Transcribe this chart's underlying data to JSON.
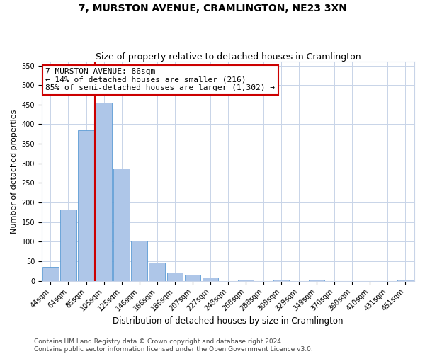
{
  "title": "7, MURSTON AVENUE, CRAMLINGTON, NE23 3XN",
  "subtitle": "Size of property relative to detached houses in Cramlington",
  "xlabel": "Distribution of detached houses by size in Cramlington",
  "ylabel": "Number of detached properties",
  "footer1": "Contains HM Land Registry data © Crown copyright and database right 2024.",
  "footer2": "Contains public sector information licensed under the Open Government Licence v3.0.",
  "categories": [
    "44sqm",
    "64sqm",
    "85sqm",
    "105sqm",
    "125sqm",
    "146sqm",
    "166sqm",
    "186sqm",
    "207sqm",
    "227sqm",
    "248sqm",
    "268sqm",
    "288sqm",
    "309sqm",
    "329sqm",
    "349sqm",
    "370sqm",
    "390sqm",
    "410sqm",
    "431sqm",
    "451sqm"
  ],
  "values": [
    35,
    183,
    385,
    455,
    287,
    103,
    47,
    22,
    15,
    9,
    0,
    4,
    0,
    4,
    0,
    4,
    0,
    0,
    0,
    0,
    4
  ],
  "bar_color": "#aec6e8",
  "bar_edge_color": "#5b9bd5",
  "annotation_text": "7 MURSTON AVENUE: 86sqm\n← 14% of detached houses are smaller (216)\n85% of semi-detached houses are larger (1,302) →",
  "annotation_box_color": "#ffffff",
  "annotation_box_edge_color": "#cc0000",
  "vline_color": "#cc0000",
  "vline_x_index": 2.5,
  "ylim": [
    0,
    560
  ],
  "yticks": [
    0,
    50,
    100,
    150,
    200,
    250,
    300,
    350,
    400,
    450,
    500,
    550
  ],
  "title_fontsize": 10,
  "subtitle_fontsize": 9,
  "xlabel_fontsize": 8.5,
  "ylabel_fontsize": 8,
  "tick_fontsize": 7,
  "annotation_fontsize": 8,
  "footer_fontsize": 6.5,
  "grid_color": "#c8d4e8"
}
